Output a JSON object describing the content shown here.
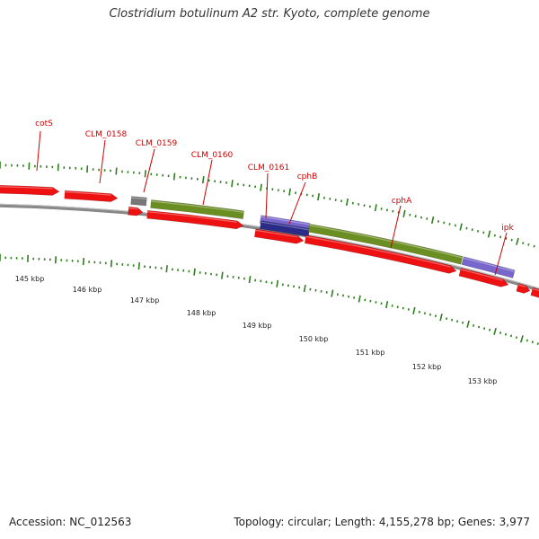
{
  "title": "Clostridium botulinum A2 str. Kyoto, complete genome",
  "colors": {
    "label": "#cc0000",
    "tick": "#2e7d1f",
    "backbone": "#888888",
    "cds": "#ee1111",
    "rrna": "#6b8e23",
    "trna": "#2b2b88",
    "trna_light": "#7766cc",
    "pseudo": "#777777"
  },
  "footer": {
    "accession_label": "Accession:",
    "accession": "NC_012563",
    "topology_label": "Topology:",
    "topology": "circular",
    "length_label": "Length:",
    "length": "4,155,278 bp",
    "genes_label": "Genes:",
    "genes": "3,977"
  },
  "chart_data": {
    "type": "genome_map",
    "tick_labels": [
      "145 kbp",
      "146 kbp",
      "147 kbp",
      "148 kbp",
      "149 kbp",
      "150 kbp",
      "151 kbp",
      "152 kbp",
      "153 kbp"
    ],
    "gene_labels": [
      "cotS",
      "CLM_0158",
      "CLM_0159",
      "CLM_0160",
      "CLM_0161",
      "cphB",
      "cphA",
      "ipk"
    ]
  }
}
